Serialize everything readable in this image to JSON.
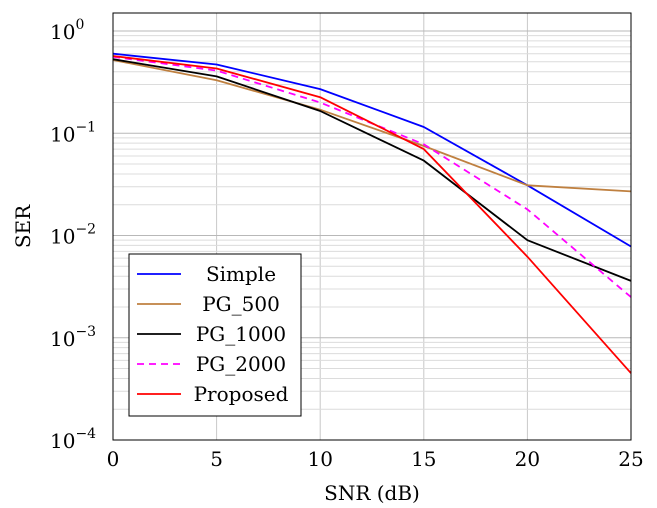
{
  "chart_data": {
    "type": "line",
    "xlabel": "SNR (dB)",
    "ylabel": "SER",
    "yscale": "log",
    "xlim": [
      0,
      25
    ],
    "ylim": [
      0.0001,
      1.5
    ],
    "grid": true,
    "legend_position": "bottom-left",
    "x_ticks": [
      "0",
      "5",
      "10",
      "15",
      "20",
      "25"
    ],
    "y_ticks": [
      {
        "base": "10",
        "exp": "0"
      },
      {
        "base": "10",
        "exp": "−1"
      },
      {
        "base": "10",
        "exp": "−2"
      },
      {
        "base": "10",
        "exp": "−3"
      },
      {
        "base": "10",
        "exp": "−4"
      }
    ],
    "x": [
      0,
      5,
      10,
      15,
      20,
      25
    ],
    "series": [
      {
        "name": "Simple",
        "color": "#0000ff",
        "dash": "solid",
        "values": [
          0.6,
          0.47,
          0.27,
          0.115,
          0.031,
          0.0078
        ]
      },
      {
        "name": "PG_500",
        "color": "#bf8040",
        "dash": "solid",
        "values": [
          0.52,
          0.33,
          0.17,
          0.075,
          0.031,
          0.027
        ]
      },
      {
        "name": "PG_1000",
        "color": "#000000",
        "dash": "solid",
        "values": [
          0.53,
          0.36,
          0.165,
          0.054,
          0.009,
          0.0036
        ]
      },
      {
        "name": "PG_2000",
        "color": "#ff00ff",
        "dash": "dashed",
        "values": [
          0.56,
          0.41,
          0.2,
          0.078,
          0.018,
          0.0025
        ]
      },
      {
        "name": "Proposed",
        "color": "#ff0000",
        "dash": "solid",
        "values": [
          0.57,
          0.43,
          0.225,
          0.07,
          0.0062,
          0.00045
        ]
      }
    ]
  }
}
